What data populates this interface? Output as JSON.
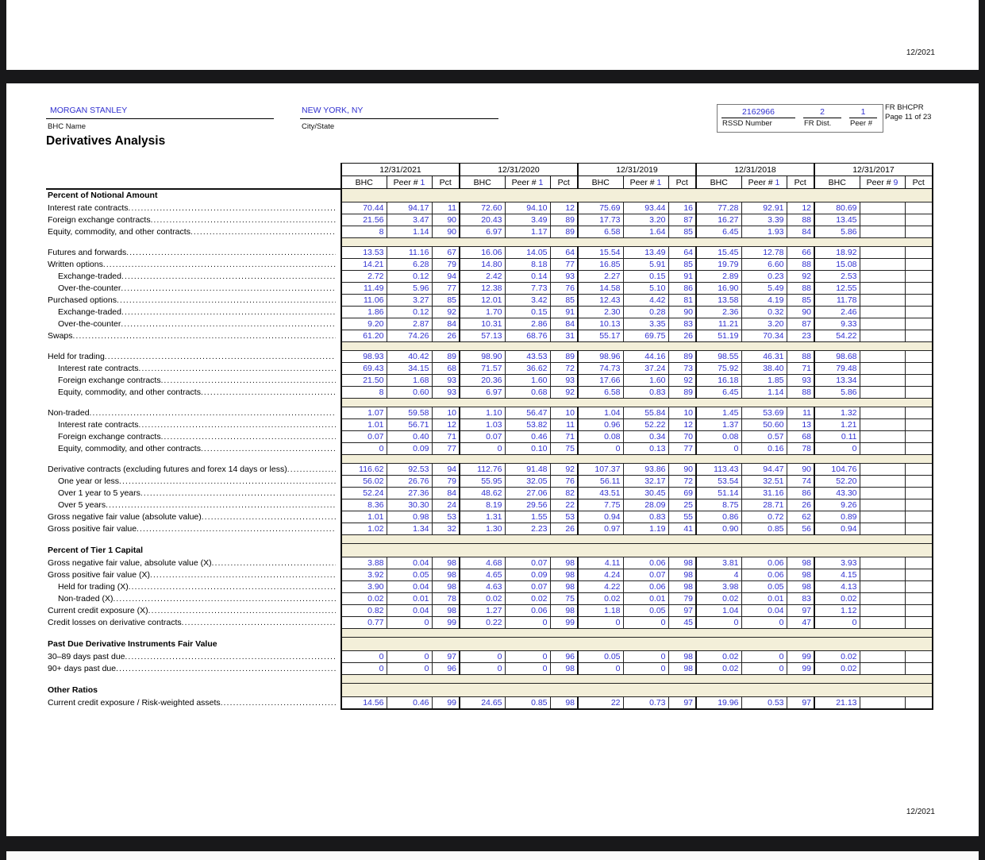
{
  "page": {
    "top_right_date": "12/2021",
    "bottom_right_date": "12/2021"
  },
  "header": {
    "bhc_name": "MORGAN STANLEY",
    "bhc_name_label": "BHC Name",
    "city_state": "NEW YORK, NY",
    "city_state_label": "City/State",
    "rssd_number": "2162966",
    "rssd_label": "RSSD Number",
    "fr_dist": "2",
    "fr_dist_label": "FR Dist.",
    "peer_num": "1",
    "peer_num_label": "Peer #",
    "form_name": "FR BHCPR",
    "page_info": "Page 11 of 23"
  },
  "title": "Derivatives Analysis",
  "table": {
    "years": [
      "12/31/2021",
      "12/31/2020",
      "12/31/2019",
      "12/31/2018",
      "12/31/2017"
    ],
    "bhc_label": "BHC",
    "peer_label": "Peer #",
    "pct_label": "Pct",
    "peer_nums": [
      "1",
      "1",
      "1",
      "1",
      "9"
    ],
    "rows": [
      {
        "type": "section",
        "label": "Percent of Notional Amount"
      },
      {
        "type": "data",
        "indent": 0,
        "label": "Interest rate contracts",
        "v": [
          "70.44",
          "94.17",
          "11",
          "72.60",
          "94.10",
          "12",
          "75.69",
          "93.44",
          "16",
          "77.28",
          "92.91",
          "12",
          "80.69",
          "",
          ""
        ]
      },
      {
        "type": "data",
        "indent": 0,
        "label": "Foreign exchange contracts",
        "v": [
          "21.56",
          "3.47",
          "90",
          "20.43",
          "3.49",
          "89",
          "17.73",
          "3.20",
          "87",
          "16.27",
          "3.39",
          "88",
          "13.45",
          "",
          ""
        ]
      },
      {
        "type": "data",
        "indent": 0,
        "label": "Equity, commodity, and other contracts",
        "v": [
          "8",
          "1.14",
          "90",
          "6.97",
          "1.17",
          "89",
          "6.58",
          "1.64",
          "85",
          "6.45",
          "1.93",
          "84",
          "5.86",
          "",
          ""
        ]
      },
      {
        "type": "spacer"
      },
      {
        "type": "data",
        "indent": 0,
        "label": "Futures and forwards",
        "v": [
          "13.53",
          "11.16",
          "67",
          "16.06",
          "14.05",
          "64",
          "15.54",
          "13.49",
          "64",
          "15.45",
          "12.78",
          "66",
          "18.92",
          "",
          ""
        ]
      },
      {
        "type": "data",
        "indent": 0,
        "label": "Written options",
        "v": [
          "14.21",
          "6.28",
          "79",
          "14.80",
          "8.18",
          "77",
          "16.85",
          "5.91",
          "85",
          "19.79",
          "6.60",
          "88",
          "15.08",
          "",
          ""
        ]
      },
      {
        "type": "data",
        "indent": 1,
        "label": "Exchange-traded",
        "v": [
          "2.72",
          "0.12",
          "94",
          "2.42",
          "0.14",
          "93",
          "2.27",
          "0.15",
          "91",
          "2.89",
          "0.23",
          "92",
          "2.53",
          "",
          ""
        ]
      },
      {
        "type": "data",
        "indent": 1,
        "label": "Over-the-counter",
        "v": [
          "11.49",
          "5.96",
          "77",
          "12.38",
          "7.73",
          "76",
          "14.58",
          "5.10",
          "86",
          "16.90",
          "5.49",
          "88",
          "12.55",
          "",
          ""
        ]
      },
      {
        "type": "data",
        "indent": 0,
        "label": "Purchased options",
        "v": [
          "11.06",
          "3.27",
          "85",
          "12.01",
          "3.42",
          "85",
          "12.43",
          "4.42",
          "81",
          "13.58",
          "4.19",
          "85",
          "11.78",
          "",
          ""
        ]
      },
      {
        "type": "data",
        "indent": 1,
        "label": "Exchange-traded",
        "v": [
          "1.86",
          "0.12",
          "92",
          "1.70",
          "0.15",
          "91",
          "2.30",
          "0.28",
          "90",
          "2.36",
          "0.32",
          "90",
          "2.46",
          "",
          ""
        ]
      },
      {
        "type": "data",
        "indent": 1,
        "label": "Over-the-counter",
        "v": [
          "9.20",
          "2.87",
          "84",
          "10.31",
          "2.86",
          "84",
          "10.13",
          "3.35",
          "83",
          "11.21",
          "3.20",
          "87",
          "9.33",
          "",
          ""
        ]
      },
      {
        "type": "data",
        "indent": 0,
        "label": "Swaps",
        "v": [
          "61.20",
          "74.26",
          "26",
          "57.13",
          "68.76",
          "31",
          "55.17",
          "69.75",
          "26",
          "51.19",
          "70.34",
          "23",
          "54.22",
          "",
          ""
        ]
      },
      {
        "type": "spacer"
      },
      {
        "type": "data",
        "indent": 0,
        "label": "Held for trading",
        "v": [
          "98.93",
          "40.42",
          "89",
          "98.90",
          "43.53",
          "89",
          "98.96",
          "44.16",
          "89",
          "98.55",
          "46.31",
          "88",
          "98.68",
          "",
          ""
        ]
      },
      {
        "type": "data",
        "indent": 1,
        "label": "Interest rate contracts",
        "v": [
          "69.43",
          "34.15",
          "68",
          "71.57",
          "36.62",
          "72",
          "74.73",
          "37.24",
          "73",
          "75.92",
          "38.40",
          "71",
          "79.48",
          "",
          ""
        ]
      },
      {
        "type": "data",
        "indent": 1,
        "label": "Foreign exchange contracts",
        "v": [
          "21.50",
          "1.68",
          "93",
          "20.36",
          "1.60",
          "93",
          "17.66",
          "1.60",
          "92",
          "16.18",
          "1.85",
          "93",
          "13.34",
          "",
          ""
        ]
      },
      {
        "type": "data",
        "indent": 1,
        "label": "Equity, commodity, and other contracts",
        "v": [
          "8",
          "0.60",
          "93",
          "6.97",
          "0.68",
          "92",
          "6.58",
          "0.83",
          "89",
          "6.45",
          "1.14",
          "88",
          "5.86",
          "",
          ""
        ]
      },
      {
        "type": "spacer"
      },
      {
        "type": "data",
        "indent": 0,
        "label": "Non-traded",
        "v": [
          "1.07",
          "59.58",
          "10",
          "1.10",
          "56.47",
          "10",
          "1.04",
          "55.84",
          "10",
          "1.45",
          "53.69",
          "11",
          "1.32",
          "",
          ""
        ]
      },
      {
        "type": "data",
        "indent": 1,
        "label": "Interest rate contracts",
        "v": [
          "1.01",
          "56.71",
          "12",
          "1.03",
          "53.82",
          "11",
          "0.96",
          "52.22",
          "12",
          "1.37",
          "50.60",
          "13",
          "1.21",
          "",
          ""
        ]
      },
      {
        "type": "data",
        "indent": 1,
        "label": "Foreign exchange contracts",
        "v": [
          "0.07",
          "0.40",
          "71",
          "0.07",
          "0.46",
          "71",
          "0.08",
          "0.34",
          "70",
          "0.08",
          "0.57",
          "68",
          "0.11",
          "",
          ""
        ]
      },
      {
        "type": "data",
        "indent": 1,
        "label": "Equity, commodity, and other contracts",
        "v": [
          "0",
          "0.09",
          "77",
          "0",
          "0.10",
          "75",
          "0",
          "0.13",
          "77",
          "0",
          "0.16",
          "78",
          "0",
          "",
          ""
        ]
      },
      {
        "type": "spacer"
      },
      {
        "type": "data",
        "indent": 0,
        "label": "Derivative contracts (excluding futures and forex 14 days or less)",
        "v": [
          "116.62",
          "92.53",
          "94",
          "112.76",
          "91.48",
          "92",
          "107.37",
          "93.86",
          "90",
          "113.43",
          "94.47",
          "90",
          "104.76",
          "",
          ""
        ]
      },
      {
        "type": "data",
        "indent": 1,
        "label": "One year or less",
        "v": [
          "56.02",
          "26.76",
          "79",
          "55.95",
          "32.05",
          "76",
          "56.11",
          "32.17",
          "72",
          "53.54",
          "32.51",
          "74",
          "52.20",
          "",
          ""
        ]
      },
      {
        "type": "data",
        "indent": 1,
        "label": "Over 1 year to 5 years",
        "v": [
          "52.24",
          "27.36",
          "84",
          "48.62",
          "27.06",
          "82",
          "43.51",
          "30.45",
          "69",
          "51.14",
          "31.16",
          "86",
          "43.30",
          "",
          ""
        ]
      },
      {
        "type": "data",
        "indent": 1,
        "label": "Over 5 years",
        "v": [
          "8.36",
          "30.30",
          "24",
          "8.19",
          "29.56",
          "22",
          "7.75",
          "28.09",
          "25",
          "8.75",
          "28.71",
          "26",
          "9.26",
          "",
          ""
        ]
      },
      {
        "type": "data",
        "indent": 0,
        "label": "Gross negative fair value (absolute value)",
        "v": [
          "1.01",
          "0.98",
          "53",
          "1.31",
          "1.55",
          "53",
          "0.94",
          "0.83",
          "55",
          "0.86",
          "0.72",
          "62",
          "0.89",
          "",
          ""
        ]
      },
      {
        "type": "data",
        "indent": 0,
        "label": "Gross positive fair value",
        "v": [
          "1.02",
          "1.34",
          "32",
          "1.30",
          "2.23",
          "26",
          "0.97",
          "1.19",
          "41",
          "0.90",
          "0.85",
          "56",
          "0.94",
          "",
          ""
        ]
      },
      {
        "type": "spacer"
      },
      {
        "type": "section",
        "label": "Percent of Tier 1 Capital"
      },
      {
        "type": "data",
        "indent": 0,
        "label": "Gross negative fair value, absolute value (X)",
        "v": [
          "3.88",
          "0.04",
          "98",
          "4.68",
          "0.07",
          "98",
          "4.11",
          "0.06",
          "98",
          "3.81",
          "0.06",
          "98",
          "3.93",
          "",
          ""
        ]
      },
      {
        "type": "data",
        "indent": 0,
        "label": "Gross positive fair value (X)",
        "v": [
          "3.92",
          "0.05",
          "98",
          "4.65",
          "0.09",
          "98",
          "4.24",
          "0.07",
          "98",
          "4",
          "0.06",
          "98",
          "4.15",
          "",
          ""
        ]
      },
      {
        "type": "data",
        "indent": 1,
        "label": "Held for trading (X)",
        "v": [
          "3.90",
          "0.04",
          "98",
          "4.63",
          "0.07",
          "98",
          "4.22",
          "0.06",
          "98",
          "3.98",
          "0.05",
          "98",
          "4.13",
          "",
          ""
        ]
      },
      {
        "type": "data",
        "indent": 1,
        "label": "Non-traded (X)",
        "v": [
          "0.02",
          "0.01",
          "78",
          "0.02",
          "0.02",
          "75",
          "0.02",
          "0.01",
          "79",
          "0.02",
          "0.01",
          "83",
          "0.02",
          "",
          ""
        ]
      },
      {
        "type": "data",
        "indent": 0,
        "label": "Current credit exposure (X)",
        "v": [
          "0.82",
          "0.04",
          "98",
          "1.27",
          "0.06",
          "98",
          "1.18",
          "0.05",
          "97",
          "1.04",
          "0.04",
          "97",
          "1.12",
          "",
          ""
        ]
      },
      {
        "type": "data",
        "indent": 0,
        "label": "Credit losses on derivative contracts",
        "v": [
          "0.77",
          "0",
          "99",
          "0.22",
          "0",
          "99",
          "0",
          "0",
          "45",
          "0",
          "0",
          "47",
          "0",
          "",
          ""
        ]
      },
      {
        "type": "spacer"
      },
      {
        "type": "section",
        "label": "Past Due Derivative Instruments Fair Value"
      },
      {
        "type": "data",
        "indent": 0,
        "label": "30–89 days past due",
        "v": [
          "0",
          "0",
          "97",
          "0",
          "0",
          "96",
          "0.05",
          "0",
          "98",
          "0.02",
          "0",
          "99",
          "0.02",
          "",
          ""
        ]
      },
      {
        "type": "data",
        "indent": 0,
        "label": "90+ days past due",
        "v": [
          "0",
          "0",
          "96",
          "0",
          "0",
          "98",
          "0",
          "0",
          "98",
          "0.02",
          "0",
          "99",
          "0.02",
          "",
          ""
        ]
      },
      {
        "type": "spacer"
      },
      {
        "type": "section",
        "label": "Other Ratios"
      },
      {
        "type": "data",
        "indent": 0,
        "label": "Current credit exposure / Risk-weighted assets",
        "v": [
          "14.56",
          "0.46",
          "99",
          "24.65",
          "0.85",
          "98",
          "22",
          "0.73",
          "97",
          "19.96",
          "0.53",
          "97",
          "21.13",
          "",
          ""
        ]
      }
    ]
  }
}
